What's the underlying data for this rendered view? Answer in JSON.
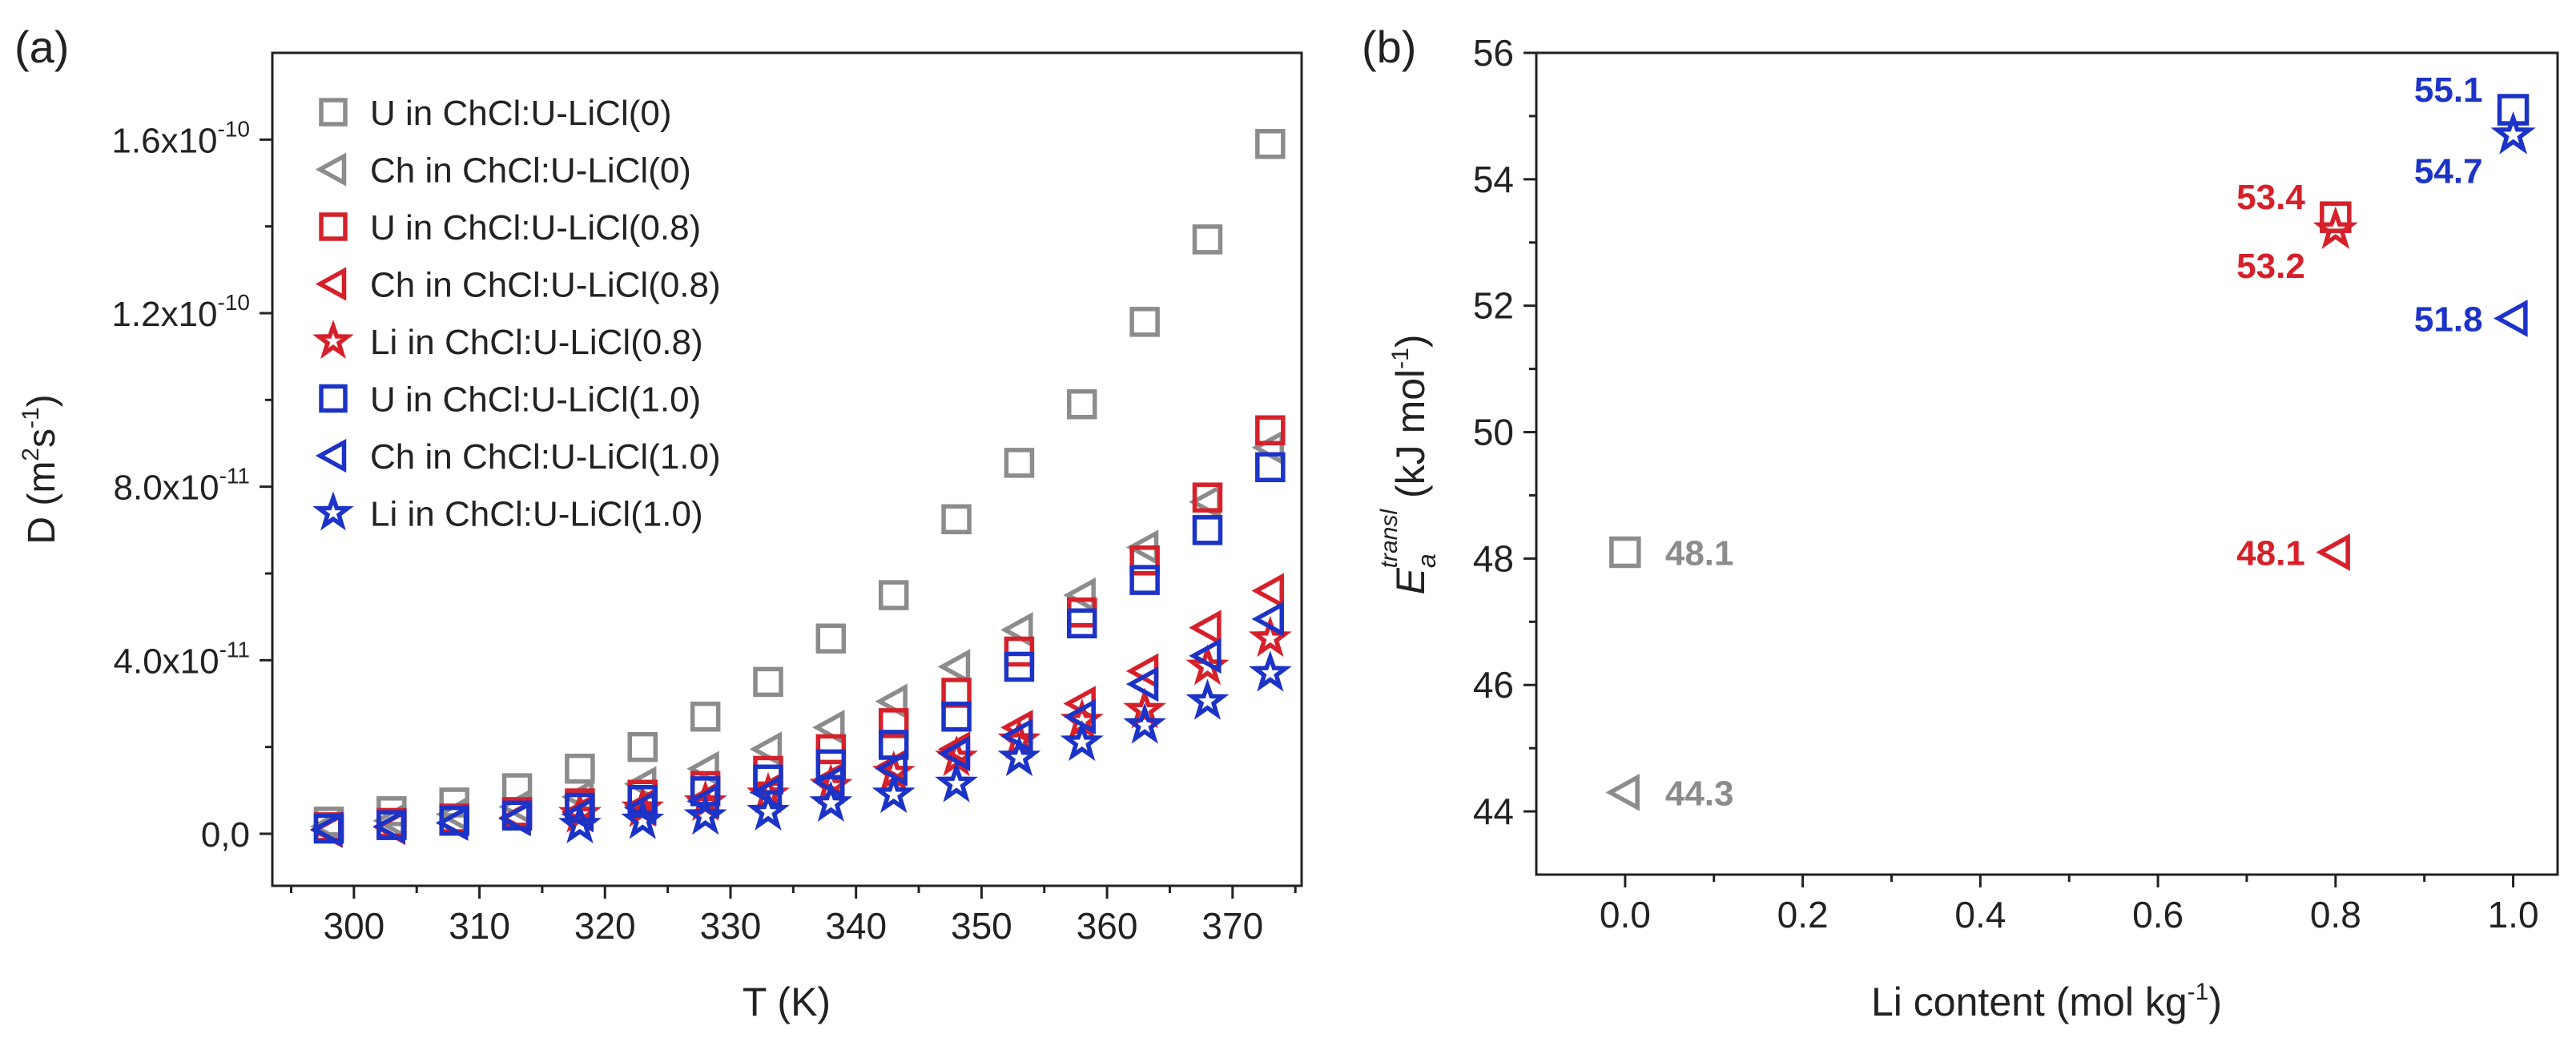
{
  "colors": {
    "gray": "#8c8c8c",
    "red": "#d6202a",
    "blue": "#1c33c7",
    "axis": "#222222"
  },
  "chart_data": [
    {
      "type": "scatter",
      "panel_label": "(a)",
      "xlabel": "T (K)",
      "ylabel": {
        "main": "D (m",
        "sup1": "2",
        "mid": "s",
        "sup2": "-1",
        "end": ")"
      },
      "xlim": [
        293.5,
        375.5
      ],
      "ylim": [
        -1.2e-11,
        1.8e-10
      ],
      "x_ticks": [
        300,
        310,
        320,
        330,
        340,
        350,
        360,
        370
      ],
      "x_tick_labels": [
        "300",
        "310",
        "320",
        "330",
        "340",
        "350",
        "360",
        "370"
      ],
      "y_ticks": [
        0,
        4e-11,
        8e-11,
        1.2e-10,
        1.6e-10
      ],
      "y_tick_labels": [
        {
          "main": "0,0",
          "exp": ""
        },
        {
          "main": "4.0x10",
          "exp": "-11"
        },
        {
          "main": "8.0x10",
          "exp": "-11"
        },
        {
          "main": "1.2x10",
          "exp": "-10"
        },
        {
          "main": "1.6x10",
          "exp": "-10"
        }
      ],
      "x": [
        298,
        303,
        308,
        313,
        318,
        323,
        328,
        333,
        338,
        343,
        348,
        353,
        358,
        363,
        368,
        373
      ],
      "series": [
        {
          "name": "U in ChCl:U-LiCl(0)",
          "marker": "square",
          "color": "gray",
          "values": [
            2.8e-12,
            5.2e-12,
            7.2e-12,
            1.05e-11,
            1.5e-11,
            2e-11,
            2.7e-11,
            3.5e-11,
            4.5e-11,
            5.5e-11,
            7.25e-11,
            8.55e-11,
            9.9e-11,
            1.18e-10,
            1.37e-10,
            1.59e-10
          ]
        },
        {
          "name": "Ch in ChCl:U-LiCl(0)",
          "marker": "triangle-left",
          "color": "gray",
          "values": [
            1.7e-12,
            3e-12,
            4.5e-12,
            6.2e-12,
            8.5e-12,
            1.15e-11,
            1.5e-11,
            1.95e-11,
            2.45e-11,
            3.05e-11,
            3.85e-11,
            4.7e-11,
            5.5e-11,
            6.6e-11,
            7.65e-11,
            8.9e-11
          ]
        },
        {
          "name": "U in ChCl:U-LiCl(0.8)",
          "marker": "square",
          "color": "red",
          "values": [
            1.5e-12,
            2.5e-12,
            3.5e-12,
            5e-12,
            7e-12,
            9e-12,
            1.1e-11,
            1.45e-11,
            1.95e-11,
            2.55e-11,
            3.25e-11,
            4.2e-11,
            5.1e-11,
            6.3e-11,
            7.75e-11,
            9.3e-11
          ]
        },
        {
          "name": "Ch in ChCl:U-LiCl(0.8)",
          "marker": "triangle-left",
          "color": "red",
          "values": [
            8e-13,
            1.5e-12,
            2.5e-12,
            3.7e-12,
            5e-12,
            6.5e-12,
            8e-12,
            1e-11,
            1.25e-11,
            1.55e-11,
            1.95e-11,
            2.45e-11,
            3e-11,
            3.75e-11,
            4.75e-11,
            5.6e-11
          ]
        },
        {
          "name": "Li in ChCl:U-LiCl(0.8)",
          "marker": "star",
          "color": "red",
          "values": [
            null,
            null,
            null,
            null,
            4.5e-12,
            5.8e-12,
            7.2e-12,
            9e-12,
            1.1e-11,
            1.4e-11,
            1.75e-11,
            2.15e-11,
            2.6e-11,
            2.85e-11,
            3.85e-11,
            4.5e-11
          ]
        },
        {
          "name": "U in ChCl:U-LiCl(1.0)",
          "marker": "square",
          "color": "blue",
          "values": [
            1.2e-12,
            2e-12,
            3e-12,
            4.2e-12,
            6e-12,
            7.8e-12,
            9.8e-12,
            1.25e-11,
            1.6e-11,
            2.05e-11,
            2.7e-11,
            3.85e-11,
            4.85e-11,
            5.85e-11,
            7e-11,
            8.45e-11
          ]
        },
        {
          "name": "Ch in ChCl:U-LiCl(1.0)",
          "marker": "triangle-left",
          "color": "blue",
          "values": [
            1e-12,
            1.7e-12,
            2.5e-12,
            3.5e-12,
            4.5e-12,
            6e-12,
            7.5e-12,
            9.5e-12,
            1.2e-11,
            1.5e-11,
            1.85e-11,
            2.25e-11,
            2.7e-11,
            3.45e-11,
            4.1e-11,
            4.95e-11
          ]
        },
        {
          "name": "Li in ChCl:U-LiCl(1.0)",
          "marker": "star",
          "color": "blue",
          "values": [
            null,
            null,
            null,
            null,
            2e-12,
            3e-12,
            4e-12,
            5e-12,
            7e-12,
            9e-12,
            1.15e-11,
            1.75e-11,
            2.1e-11,
            2.5e-11,
            3.05e-11,
            3.7e-11
          ]
        }
      ]
    },
    {
      "type": "scatter",
      "panel_label": "(b)",
      "xlabel": {
        "main": "Li content (mol kg",
        "sup": "-1",
        "end": ")"
      },
      "ylabel": {
        "main": "E",
        "sub": "a",
        "sup": "transl",
        "unit": "(kJ mol",
        "unit_sup": "-1",
        "unit_end": ")"
      },
      "xlim": [
        -0.1,
        1.05
      ],
      "ylim": [
        43,
        56
      ],
      "x_ticks": [
        0.0,
        0.2,
        0.4,
        0.6,
        0.8,
        1.0
      ],
      "x_tick_labels": [
        "0.0",
        "0.2",
        "0.4",
        "0.6",
        "0.8",
        "1.0"
      ],
      "y_ticks": [
        44,
        46,
        48,
        50,
        52,
        54,
        56
      ],
      "y_tick_labels": [
        "44",
        "46",
        "48",
        "50",
        "52",
        "54",
        "56"
      ],
      "points": [
        {
          "series": "U",
          "x": 0.0,
          "y": 48.1,
          "marker": "square",
          "color": "gray",
          "label": "48.1",
          "label_side": "right"
        },
        {
          "series": "Ch",
          "x": 0.0,
          "y": 44.3,
          "marker": "triangle-left",
          "color": "gray",
          "label": "44.3",
          "label_side": "right"
        },
        {
          "series": "U",
          "x": 0.8,
          "y": 53.4,
          "marker": "square",
          "color": "red",
          "label": "53.4",
          "label_side": "left-up"
        },
        {
          "series": "Li",
          "x": 0.8,
          "y": 53.2,
          "marker": "star",
          "color": "red",
          "label": "53.2",
          "label_side": "left-down"
        },
        {
          "series": "Ch",
          "x": 0.8,
          "y": 48.1,
          "marker": "triangle-left",
          "color": "red",
          "label": "48.1",
          "label_side": "left"
        },
        {
          "series": "U",
          "x": 1.0,
          "y": 55.1,
          "marker": "square",
          "color": "blue",
          "label": "55.1",
          "label_side": "left-up"
        },
        {
          "series": "Li",
          "x": 1.0,
          "y": 54.7,
          "marker": "star",
          "color": "blue",
          "label": "54.7",
          "label_side": "left-down"
        },
        {
          "series": "Ch",
          "x": 1.0,
          "y": 51.8,
          "marker": "triangle-left",
          "color": "blue",
          "label": "51.8",
          "label_side": "left"
        }
      ]
    }
  ]
}
